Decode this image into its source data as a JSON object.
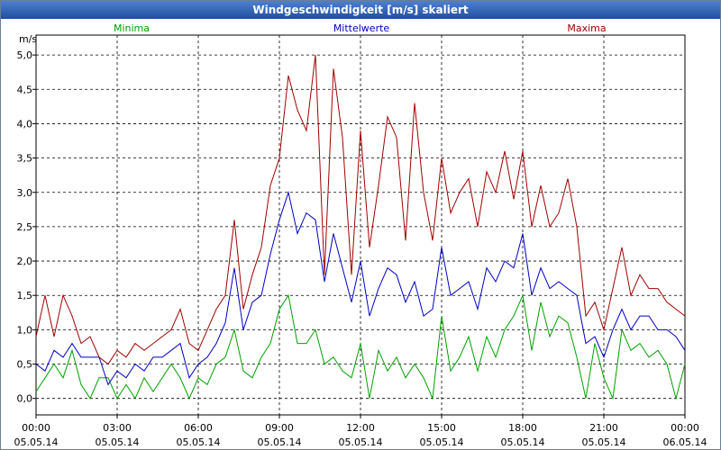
{
  "chart_data": {
    "type": "line",
    "title": "Windgeschwindigkeit [m/s] skaliert",
    "y_label": "m/s",
    "x": [
      0,
      20,
      40,
      60,
      80,
      100,
      120,
      140,
      160,
      180,
      200,
      220,
      240,
      260,
      280,
      300,
      320,
      340,
      360,
      380,
      400,
      420,
      440,
      460,
      480,
      500,
      520,
      540,
      560,
      580,
      600,
      620,
      640,
      660,
      680,
      700,
      720,
      740,
      760,
      780,
      800,
      820,
      840,
      860,
      880,
      900,
      920,
      940,
      960,
      980,
      1000,
      1020,
      1040,
      1060,
      1080,
      1100,
      1120,
      1140,
      1160,
      1180,
      1200,
      1220,
      1240,
      1260,
      1280,
      1300,
      1320,
      1340,
      1360,
      1380,
      1400,
      1420,
      1440
    ],
    "series": [
      {
        "name": "Minima",
        "color": "#00a000",
        "values": [
          0.1,
          0.3,
          0.5,
          0.3,
          0.7,
          0.2,
          0.0,
          0.3,
          0.3,
          0.0,
          0.2,
          0.0,
          0.3,
          0.1,
          0.3,
          0.5,
          0.3,
          0.0,
          0.3,
          0.2,
          0.5,
          0.6,
          1.0,
          0.4,
          0.3,
          0.6,
          0.8,
          1.3,
          1.5,
          0.8,
          0.8,
          1.0,
          0.5,
          0.6,
          0.4,
          0.3,
          0.8,
          0.0,
          0.7,
          0.4,
          0.6,
          0.3,
          0.5,
          0.3,
          0.0,
          1.2,
          0.4,
          0.6,
          0.9,
          0.4,
          0.9,
          0.6,
          1.0,
          1.2,
          1.5,
          0.7,
          1.4,
          0.9,
          1.2,
          1.1,
          0.6,
          0.0,
          0.8,
          0.3,
          0.0,
          1.0,
          0.7,
          0.8,
          0.6,
          0.7,
          0.5,
          0.0,
          0.5
        ]
      },
      {
        "name": "Mittelwerte",
        "color": "#0000c0",
        "values": [
          0.5,
          0.4,
          0.7,
          0.6,
          0.8,
          0.6,
          0.6,
          0.6,
          0.2,
          0.4,
          0.3,
          0.5,
          0.4,
          0.6,
          0.6,
          0.7,
          0.8,
          0.3,
          0.5,
          0.6,
          0.8,
          1.1,
          1.9,
          1.0,
          1.4,
          1.5,
          2.1,
          2.6,
          3.0,
          2.4,
          2.7,
          2.6,
          1.7,
          2.4,
          1.9,
          1.4,
          2.0,
          1.2,
          1.6,
          1.9,
          1.8,
          1.4,
          1.7,
          1.2,
          1.3,
          2.2,
          1.5,
          1.6,
          1.7,
          1.3,
          1.9,
          1.7,
          2.0,
          1.9,
          2.4,
          1.5,
          1.9,
          1.6,
          1.7,
          1.6,
          1.5,
          0.8,
          0.9,
          0.6,
          1.0,
          1.3,
          1.0,
          1.2,
          1.2,
          1.0,
          1.0,
          0.9,
          0.7
        ]
      },
      {
        "name": "Maxima",
        "color": "#a00000",
        "values": [
          0.9,
          1.5,
          0.9,
          1.5,
          1.2,
          0.8,
          0.9,
          0.6,
          0.5,
          0.7,
          0.6,
          0.8,
          0.7,
          0.8,
          0.9,
          1.0,
          1.3,
          0.8,
          0.7,
          1.0,
          1.3,
          1.5,
          2.6,
          1.3,
          1.8,
          2.2,
          3.1,
          3.5,
          4.7,
          4.2,
          3.9,
          5.0,
          1.8,
          4.8,
          3.8,
          1.8,
          3.9,
          2.2,
          3.1,
          4.1,
          3.8,
          2.3,
          4.3,
          3.0,
          2.3,
          3.5,
          2.7,
          3.0,
          3.2,
          2.5,
          3.3,
          3.0,
          3.6,
          2.9,
          3.6,
          2.5,
          3.1,
          2.5,
          2.7,
          3.2,
          2.5,
          1.2,
          1.4,
          1.0,
          1.6,
          2.2,
          1.5,
          1.8,
          1.6,
          1.6,
          1.4,
          1.3,
          1.2
        ]
      }
    ],
    "xlim": [
      0,
      1440
    ],
    "xticks": [
      {
        "value": 0,
        "label": "00:00",
        "date": "05.05.14"
      },
      {
        "value": 180,
        "label": "03:00",
        "date": "05.05.14"
      },
      {
        "value": 360,
        "label": "06:00",
        "date": "05.05.14"
      },
      {
        "value": 540,
        "label": "09:00",
        "date": "05.05.14"
      },
      {
        "value": 720,
        "label": "12:00",
        "date": "05.05.14"
      },
      {
        "value": 900,
        "label": "15:00",
        "date": "05.05.14"
      },
      {
        "value": 1080,
        "label": "18:00",
        "date": "05.05.14"
      },
      {
        "value": 1260,
        "label": "21:00",
        "date": "05.05.14"
      },
      {
        "value": 1440,
        "label": "00:00",
        "date": "06.05.14"
      }
    ],
    "ylim": [
      -0.24,
      5.29
    ],
    "yticks": [
      {
        "value": 0,
        "label": "0,0"
      },
      {
        "value": 0.5,
        "label": "0,5"
      },
      {
        "value": 1,
        "label": "1,0"
      },
      {
        "value": 1.5,
        "label": "1,5"
      },
      {
        "value": 2,
        "label": "2,0"
      },
      {
        "value": 2.5,
        "label": "2,5"
      },
      {
        "value": 3,
        "label": "3,0"
      },
      {
        "value": 3.5,
        "label": "3,5"
      },
      {
        "value": 4,
        "label": "4,0"
      },
      {
        "value": 4.5,
        "label": "4,5"
      },
      {
        "value": 5,
        "label": "5,0"
      }
    ],
    "grid": true
  }
}
